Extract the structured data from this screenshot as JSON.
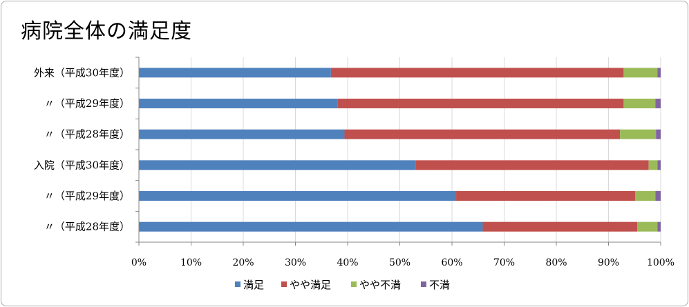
{
  "chart_data": {
    "type": "bar",
    "orientation": "horizontal",
    "stacked": "percent",
    "title": "病院全体の満足度",
    "categories": [
      "外来（平成30年度）",
      "〃（平成29年度）",
      "〃（平成28年度）",
      "入院（平成30年度）",
      "〃（平成29年度）",
      "〃（平成28年度）"
    ],
    "series": [
      {
        "name": "満足",
        "color": "#4f81bd",
        "values": [
          36.8,
          38.1,
          39.4,
          53.1,
          60.8,
          65.9
        ]
      },
      {
        "name": "やや満足",
        "color": "#c0504d",
        "values": [
          56.1,
          54.8,
          52.8,
          44.6,
          34.3,
          29.6
        ]
      },
      {
        "name": "やや不満",
        "color": "#9bbb59",
        "values": [
          6.5,
          6.1,
          6.9,
          1.7,
          3.9,
          3.9
        ]
      },
      {
        "name": "不満",
        "color": "#8064a2",
        "values": [
          0.6,
          1.0,
          0.9,
          0.6,
          1.0,
          0.6
        ]
      }
    ],
    "x_ticks": [
      "0%",
      "10%",
      "20%",
      "30%",
      "40%",
      "50%",
      "60%",
      "70%",
      "80%",
      "90%",
      "100%"
    ],
    "xlim": [
      0,
      100
    ],
    "grid": "vertical",
    "legend_position": "bottom"
  },
  "colors": {
    "axis": "#868686",
    "gridline": "#d9d9d9"
  }
}
